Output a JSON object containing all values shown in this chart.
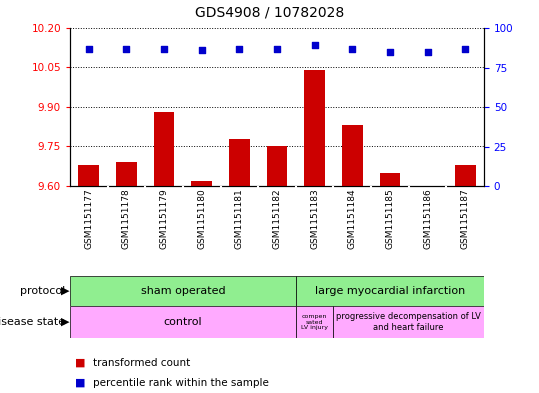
{
  "title": "GDS4908 / 10782028",
  "samples": [
    "GSM1151177",
    "GSM1151178",
    "GSM1151179",
    "GSM1151180",
    "GSM1151181",
    "GSM1151182",
    "GSM1151183",
    "GSM1151184",
    "GSM1151185",
    "GSM1151186",
    "GSM1151187"
  ],
  "bar_values": [
    9.68,
    9.69,
    9.88,
    9.62,
    9.78,
    9.75,
    10.04,
    9.83,
    9.65,
    9.601,
    9.68
  ],
  "bar_base": 9.6,
  "percentile_values": [
    87,
    87,
    87,
    86,
    87,
    87,
    89,
    87,
    85,
    85,
    87
  ],
  "ylim_left": [
    9.6,
    10.2
  ],
  "ylim_right": [
    0,
    100
  ],
  "yticks_left": [
    9.6,
    9.75,
    9.9,
    10.05,
    10.2
  ],
  "yticks_right": [
    0,
    25,
    50,
    75,
    100
  ],
  "bar_color": "#cc0000",
  "dot_color": "#0000cc",
  "bar_width": 0.55,
  "legend_bar_label": "transformed count",
  "legend_dot_label": "percentile rank within the sample",
  "bg_color": "#d8d8d8",
  "green_color": "#90ee90",
  "pink_color": "#ffaaff"
}
